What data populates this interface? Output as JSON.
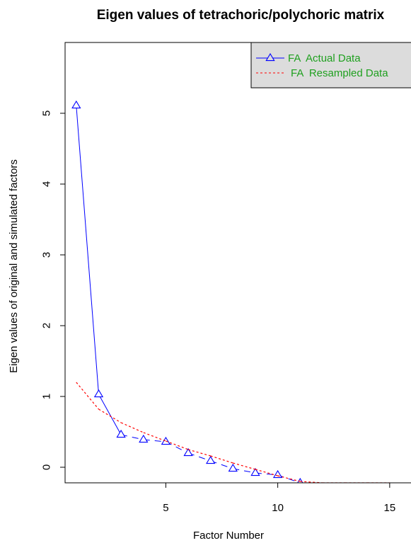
{
  "chart_data": {
    "type": "line",
    "title": "Eigen values of tetrachoric/polychoric matrix",
    "xlabel": "Factor Number",
    "ylabel": "Eigen values of original  and simulated factors",
    "xlim": [
      0.5,
      16.3
    ],
    "ylim": [
      -0.22,
      6.0
    ],
    "x_ticks": [
      5,
      10,
      15
    ],
    "y_ticks": [
      0,
      1,
      2,
      3,
      4,
      5
    ],
    "grid": false,
    "legend_position": "top-right",
    "series": [
      {
        "name": "FA  Actual Data",
        "color": "#0000ff",
        "marker": "triangle-open",
        "line_styles": [
          "solid",
          "solid",
          "dashed",
          "dashed",
          "dashed",
          "dashed",
          "dashed",
          "dashed",
          "dashed",
          "dashed",
          "dashed",
          "dashed",
          "dashed",
          "dashed",
          "dashed"
        ],
        "x": [
          1,
          2,
          3,
          4,
          5,
          6,
          7,
          8,
          9,
          10,
          11,
          12,
          13,
          14,
          15
        ],
        "y": [
          5.11,
          1.03,
          0.46,
          0.39,
          0.36,
          0.2,
          0.09,
          -0.02,
          -0.08,
          -0.11,
          -0.22,
          -0.25,
          -0.25,
          -0.25,
          -0.25
        ]
      },
      {
        "name": "FA  Resampled Data",
        "color": "#ff0000",
        "line_style": "dotted",
        "x": [
          1,
          2,
          3,
          4,
          5,
          6,
          7,
          8,
          9,
          10,
          11,
          12,
          13,
          14,
          15
        ],
        "y": [
          1.2,
          0.82,
          0.63,
          0.49,
          0.37,
          0.25,
          0.16,
          0.06,
          -0.03,
          -0.12,
          -0.2,
          -0.25,
          -0.25,
          -0.25,
          -0.25
        ]
      }
    ]
  }
}
